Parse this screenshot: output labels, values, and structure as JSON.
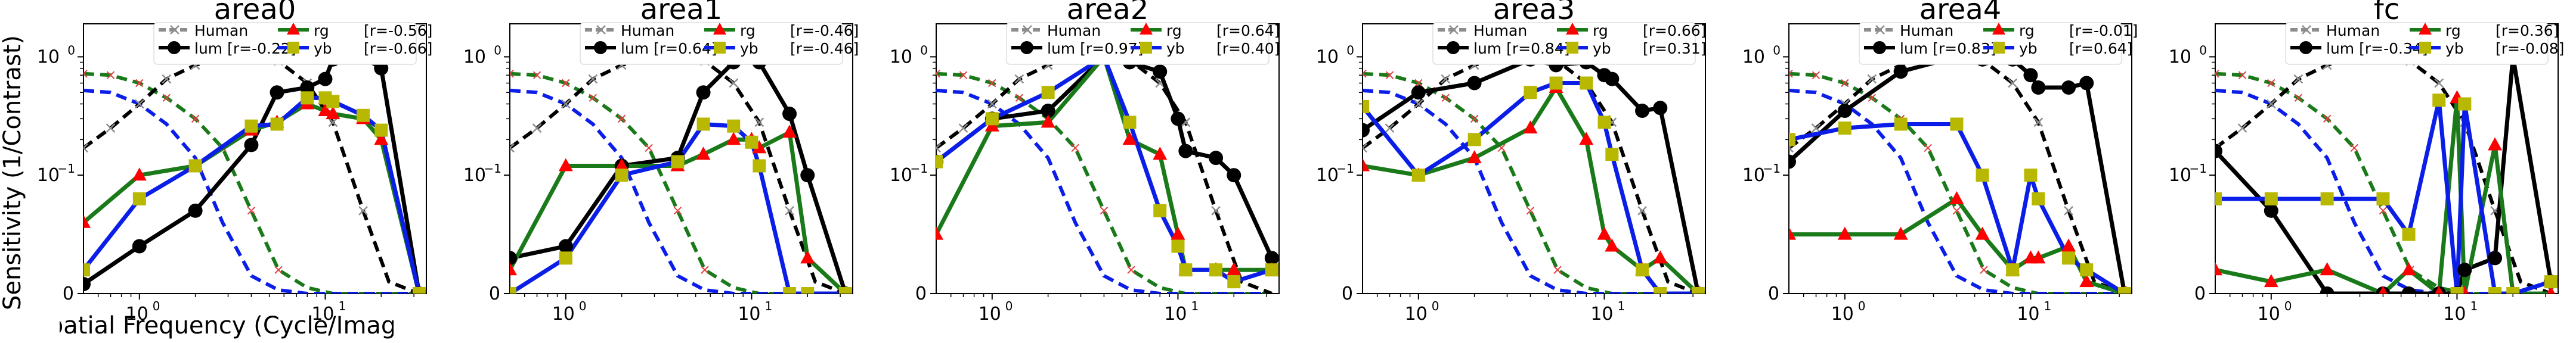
{
  "figure": {
    "ylabel": "Sensitivity (1/Contrast)",
    "xlabel": "Spatial Frequency (Cycle/Image)"
  },
  "colors": {
    "human": "#8c8c8c",
    "lum": "#000000",
    "rg": "#1a7a1a",
    "rg_marker": "#ff0000",
    "yb": "#0a1ee8",
    "yb_marker": "#b8b800",
    "human_dashed": "#000000",
    "rg_dashed": "#1a7a1a",
    "yb_dashed": "#0a1ee8"
  },
  "chart_data": [
    {
      "type": "line",
      "title": "area0",
      "xscale": "log",
      "yscale": "symlog",
      "xlim": [
        0.5,
        35
      ],
      "ylim": [
        0,
        1.9
      ],
      "legend": {
        "placement": "top",
        "entries": [
          "Human",
          "lum [r=-0.22]",
          "rg [r=-0.56]",
          "yb [r=-0.66]"
        ]
      },
      "x": [
        0.5,
        1.0,
        2.0,
        4.0,
        5.5,
        8.0,
        10.0,
        11.0,
        16.0,
        20.0,
        32.0
      ],
      "series": [
        {
          "name": "lum",
          "values": [
            0.008,
            0.04,
            0.07,
            0.18,
            0.5,
            0.55,
            0.65,
            0.95,
            1.0,
            0.8,
            0.0
          ]
        },
        {
          "name": "rg",
          "values": [
            0.06,
            0.1,
            0.12,
            0.24,
            0.28,
            0.4,
            0.35,
            0.33,
            0.3,
            0.2,
            0.0
          ]
        },
        {
          "name": "yb",
          "values": [
            0.02,
            0.08,
            0.12,
            0.26,
            0.27,
            0.45,
            0.45,
            0.42,
            0.32,
            0.24,
            0.0
          ]
        }
      ],
      "reference_curves": {
        "x": [
          0.5,
          0.7,
          1.0,
          1.4,
          2.0,
          2.8,
          4.0,
          5.6,
          8.0,
          11.0,
          16.0,
          22.0,
          32.0
        ],
        "human": [
          0.17,
          0.25,
          0.4,
          0.65,
          0.85,
          1.0,
          1.0,
          0.92,
          0.6,
          0.28,
          0.07,
          0.01,
          0.0
        ],
        "rg": [
          0.72,
          0.7,
          0.6,
          0.45,
          0.3,
          0.17,
          0.07,
          0.02,
          0.005,
          0.0,
          0.0,
          0.0,
          0.0
        ],
        "yb": [
          0.52,
          0.5,
          0.4,
          0.27,
          0.14,
          0.06,
          0.015,
          0.003,
          0.0,
          0.0,
          0.0,
          0.0,
          0.0
        ]
      }
    },
    {
      "type": "line",
      "title": "area1",
      "xscale": "log",
      "yscale": "symlog",
      "xlim": [
        0.5,
        35
      ],
      "ylim": [
        0,
        1.9
      ],
      "legend": {
        "placement": "top",
        "entries": [
          "Human",
          "lum [r=0.64]",
          "rg [r=-0.46]",
          "yb [r=-0.46]"
        ]
      },
      "x": [
        0.5,
        1.0,
        2.0,
        4.0,
        5.5,
        8.0,
        10.0,
        11.0,
        16.0,
        20.0,
        32.0
      ],
      "series": [
        {
          "name": "lum",
          "values": [
            0.03,
            0.04,
            0.12,
            0.14,
            0.5,
            0.9,
            1.0,
            0.9,
            0.33,
            0.1,
            0.0
          ]
        },
        {
          "name": "rg",
          "values": [
            0.02,
            0.12,
            0.12,
            0.12,
            0.15,
            0.2,
            0.2,
            0.17,
            0.23,
            0.03,
            0.0
          ]
        },
        {
          "name": "yb",
          "values": [
            0.0,
            0.03,
            0.1,
            0.13,
            0.27,
            0.26,
            0.19,
            0.12,
            0.0,
            0.0,
            0.0
          ]
        }
      ],
      "reference_curves": {
        "x": [
          0.5,
          0.7,
          1.0,
          1.4,
          2.0,
          2.8,
          4.0,
          5.6,
          8.0,
          11.0,
          16.0,
          22.0,
          32.0
        ],
        "human": [
          0.17,
          0.25,
          0.4,
          0.65,
          0.85,
          1.0,
          1.0,
          0.92,
          0.6,
          0.28,
          0.07,
          0.01,
          0.0
        ],
        "rg": [
          0.72,
          0.7,
          0.6,
          0.45,
          0.3,
          0.17,
          0.07,
          0.02,
          0.005,
          0.0,
          0.0,
          0.0,
          0.0
        ],
        "yb": [
          0.52,
          0.5,
          0.4,
          0.27,
          0.14,
          0.06,
          0.015,
          0.003,
          0.0,
          0.0,
          0.0,
          0.0,
          0.0
        ]
      }
    },
    {
      "type": "line",
      "title": "area2",
      "xscale": "log",
      "yscale": "symlog",
      "xlim": [
        0.5,
        35
      ],
      "ylim": [
        0,
        1.9
      ],
      "legend": {
        "placement": "top",
        "entries": [
          "Human",
          "lum [r=0.97]",
          "rg [r=0.64]",
          "yb [r=0.40]"
        ]
      },
      "x": [
        0.5,
        1.0,
        2.0,
        4.0,
        5.5,
        8.0,
        10.0,
        11.0,
        16.0,
        20.0,
        32.0
      ],
      "series": [
        {
          "name": "lum",
          "values": [
            0.13,
            0.3,
            0.35,
            1.0,
            0.9,
            0.75,
            0.3,
            0.16,
            0.14,
            0.1,
            0.03
          ]
        },
        {
          "name": "rg",
          "values": [
            0.05,
            0.26,
            0.28,
            1.0,
            0.2,
            0.15,
            0.05,
            0.02,
            0.02,
            0.02,
            0.02
          ]
        },
        {
          "name": "yb",
          "values": [
            0.13,
            0.3,
            0.5,
            1.0,
            0.28,
            0.07,
            0.04,
            0.02,
            0.02,
            0.01,
            0.02
          ]
        }
      ],
      "reference_curves": {
        "x": [
          0.5,
          0.7,
          1.0,
          1.4,
          2.0,
          2.8,
          4.0,
          5.6,
          8.0,
          11.0,
          16.0,
          22.0,
          32.0
        ],
        "human": [
          0.17,
          0.25,
          0.4,
          0.65,
          0.85,
          1.0,
          1.0,
          0.92,
          0.6,
          0.28,
          0.07,
          0.01,
          0.0
        ],
        "rg": [
          0.72,
          0.7,
          0.6,
          0.45,
          0.3,
          0.17,
          0.07,
          0.02,
          0.005,
          0.0,
          0.0,
          0.0,
          0.0
        ],
        "yb": [
          0.52,
          0.5,
          0.4,
          0.27,
          0.14,
          0.06,
          0.015,
          0.003,
          0.0,
          0.0,
          0.0,
          0.0,
          0.0
        ]
      }
    },
    {
      "type": "line",
      "title": "area3",
      "xscale": "log",
      "yscale": "symlog",
      "xlim": [
        0.5,
        35
      ],
      "ylim": [
        0,
        1.9
      ],
      "legend": {
        "placement": "top",
        "entries": [
          "Human",
          "lum [r=0.84]",
          "rg [r=0.66]",
          "yb [r=0.31]"
        ]
      },
      "x": [
        0.5,
        1.0,
        2.0,
        4.0,
        5.5,
        8.0,
        10.0,
        11.0,
        16.0,
        20.0,
        32.0
      ],
      "series": [
        {
          "name": "lum",
          "values": [
            0.24,
            0.5,
            0.6,
            0.95,
            0.85,
            0.9,
            0.7,
            0.65,
            0.35,
            0.37,
            0.0
          ]
        },
        {
          "name": "rg",
          "values": [
            0.12,
            0.1,
            0.14,
            0.25,
            0.55,
            0.2,
            0.05,
            0.04,
            0.02,
            0.03,
            0.0
          ]
        },
        {
          "name": "yb",
          "values": [
            0.38,
            0.1,
            0.2,
            0.5,
            0.6,
            0.6,
            0.28,
            0.15,
            0.02,
            0.0,
            0.0
          ]
        }
      ],
      "reference_curves": {
        "x": [
          0.5,
          0.7,
          1.0,
          1.4,
          2.0,
          2.8,
          4.0,
          5.6,
          8.0,
          11.0,
          16.0,
          22.0,
          32.0
        ],
        "human": [
          0.17,
          0.25,
          0.4,
          0.65,
          0.85,
          1.0,
          1.0,
          0.92,
          0.6,
          0.28,
          0.07,
          0.01,
          0.0
        ],
        "rg": [
          0.72,
          0.7,
          0.6,
          0.45,
          0.3,
          0.17,
          0.07,
          0.02,
          0.005,
          0.0,
          0.0,
          0.0,
          0.0
        ],
        "yb": [
          0.52,
          0.5,
          0.4,
          0.27,
          0.14,
          0.06,
          0.015,
          0.003,
          0.0,
          0.0,
          0.0,
          0.0,
          0.0
        ]
      }
    },
    {
      "type": "line",
      "title": "area4",
      "xscale": "log",
      "yscale": "symlog",
      "xlim": [
        0.5,
        35
      ],
      "ylim": [
        0,
        1.9
      ],
      "legend": {
        "placement": "top",
        "entries": [
          "Human",
          "lum [r=0.83]",
          "rg [r=-0.01]",
          "yb [r=0.64]"
        ]
      },
      "x": [
        0.5,
        1.0,
        2.0,
        4.0,
        5.5,
        8.0,
        10.0,
        11.0,
        16.0,
        20.0,
        32.0
      ],
      "series": [
        {
          "name": "lum",
          "values": [
            0.13,
            0.35,
            0.75,
            1.0,
            0.95,
            0.95,
            0.7,
            0.55,
            0.55,
            0.6,
            0.0
          ]
        },
        {
          "name": "rg",
          "values": [
            0.05,
            0.05,
            0.05,
            0.08,
            0.05,
            0.02,
            0.03,
            0.03,
            0.04,
            0.01,
            0.0
          ]
        },
        {
          "name": "yb",
          "values": [
            0.2,
            0.25,
            0.27,
            0.27,
            0.1,
            0.02,
            0.1,
            0.08,
            0.03,
            0.02,
            0.0
          ]
        }
      ],
      "reference_curves": {
        "x": [
          0.5,
          0.7,
          1.0,
          1.4,
          2.0,
          2.8,
          4.0,
          5.6,
          8.0,
          11.0,
          16.0,
          22.0,
          32.0
        ],
        "human": [
          0.17,
          0.25,
          0.4,
          0.65,
          0.85,
          1.0,
          1.0,
          0.92,
          0.6,
          0.28,
          0.07,
          0.01,
          0.0
        ],
        "rg": [
          0.72,
          0.7,
          0.6,
          0.45,
          0.3,
          0.17,
          0.07,
          0.02,
          0.005,
          0.0,
          0.0,
          0.0,
          0.0
        ],
        "yb": [
          0.52,
          0.5,
          0.4,
          0.27,
          0.14,
          0.06,
          0.015,
          0.003,
          0.0,
          0.0,
          0.0,
          0.0,
          0.0
        ]
      }
    },
    {
      "type": "line",
      "title": "fc",
      "xscale": "log",
      "yscale": "symlog",
      "xlim": [
        0.5,
        35
      ],
      "ylim": [
        0,
        1.9
      ],
      "legend": {
        "placement": "top",
        "entries": [
          "Human",
          "lum [r=-0.34]",
          "rg [r=0.36]",
          "yb [r=-0.08]"
        ]
      },
      "x": [
        0.5,
        1.0,
        2.0,
        4.0,
        5.5,
        8.0,
        10.0,
        11.0,
        16.0,
        20.0,
        32.0
      ],
      "series": [
        {
          "name": "lum",
          "values": [
            0.16,
            0.07,
            0.0,
            0.0,
            0.0,
            0.0,
            0.0,
            0.02,
            0.03,
            1.0,
            0.01
          ]
        },
        {
          "name": "rg",
          "values": [
            0.02,
            0.01,
            0.02,
            0.0,
            0.02,
            0.0,
            0.45,
            0.0,
            0.18,
            0.0,
            0.0
          ]
        },
        {
          "name": "yb",
          "values": [
            0.08,
            0.08,
            0.08,
            0.08,
            0.05,
            0.43,
            0.0,
            0.4,
            0.0,
            0.0,
            0.01
          ]
        }
      ],
      "reference_curves": {
        "x": [
          0.5,
          0.7,
          1.0,
          1.4,
          2.0,
          2.8,
          4.0,
          5.6,
          8.0,
          11.0,
          16.0,
          22.0,
          32.0
        ],
        "human": [
          0.17,
          0.25,
          0.4,
          0.65,
          0.85,
          1.0,
          1.0,
          0.92,
          0.6,
          0.28,
          0.07,
          0.01,
          0.0
        ],
        "rg": [
          0.72,
          0.7,
          0.6,
          0.45,
          0.3,
          0.17,
          0.07,
          0.02,
          0.005,
          0.0,
          0.0,
          0.0,
          0.0
        ],
        "yb": [
          0.52,
          0.5,
          0.4,
          0.27,
          0.14,
          0.06,
          0.015,
          0.003,
          0.0,
          0.0,
          0.0,
          0.0,
          0.0
        ]
      }
    }
  ]
}
